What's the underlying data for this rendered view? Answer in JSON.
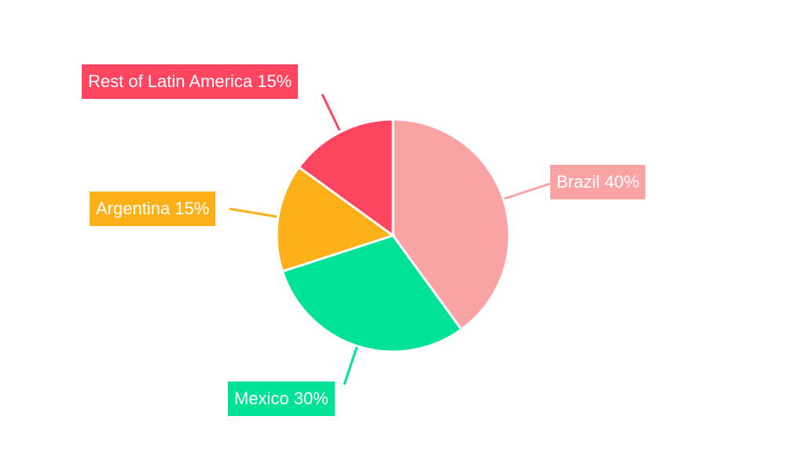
{
  "chart_data": {
    "type": "pie",
    "title": "",
    "start_angle": "12 o'clock, clockwise",
    "slices": [
      {
        "label": "Brazil",
        "value": 40,
        "display": "Brazil 40%",
        "color": "#f9a3a4"
      },
      {
        "label": "Mexico",
        "value": 30,
        "display": "Mexico 30%",
        "color": "#00e396"
      },
      {
        "label": "Argentina",
        "value": 15,
        "display": "Argentina 15%",
        "color": "#feb019"
      },
      {
        "label": "Rest of Latin America",
        "value": 15,
        "display": "Rest of Latin America 15%",
        "color": "#ff4560"
      }
    ]
  }
}
